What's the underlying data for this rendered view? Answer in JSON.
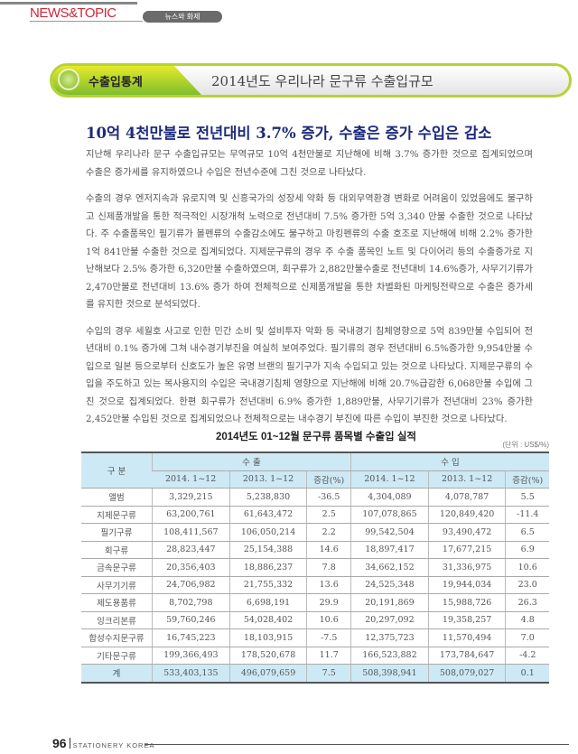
{
  "header": {
    "section": "NEWS&TOPIC",
    "section_kr": "뉴스와 화제"
  },
  "banner": {
    "category": "수출입통계",
    "title": "2014년도 우리나라 문구류 수출입규모",
    "accent_color": "#b6d334"
  },
  "article": {
    "headline": "10억 4천만불로 전년대비 3.7% 증가, 수출은 증가 수입은 감소",
    "paragraphs": [
      "지난해 우리나라 문구 수출입규모는 무역규모 10억 4천만불로 지난해에 비해 3.7% 증가한 것으로 집계되었으며 수출은 증가세를 유지하였으나 수입은 전년수준에 그친 것으로 나타났다.",
      "수출의 경우 엔저지속과 유로지역 및 신흥국가의 성장세 약화 등 대외무역환경 변화로 어려움이 있었음에도 불구하고 신제품개발을 통한 적극적인 시장개척 노력으로 전년대비 7.5% 증가한 5억 3,340 만불 수출한 것으로 나타났다. 주 수출품목인 필기류가 볼펜류의 수출감소에도 불구하고 마킹펜류의 수출 호조로 지난해에 비해 2.2% 증가한 1억 841만불 수출한 것으로 집계되었다. 지제문구류의 경우 주 수출 품목인 노트 및 다이어리 등의 수출증가로 지난해보다 2.5% 증가한 6,320만불 수출하였으며, 회구류가 2,882만불수출로 전년대비 14.6%증가, 사무기기류가 2,470만불로 전년대비 13.6% 증가 하여 전체적으로 신제품개발을 통한 차별화된 마케팅전략으로 수출은 증가세를 유지한 것으로 분석되었다.",
      "수입의 경우 세월호 사고로 인한 민간 소비 및 설비투자 악화 등 국내경기 침체영향으로 5억 839만불 수입되어 전년대비 0.1% 증가에 그쳐 내수경기부진을 여실히 보여주었다. 필기류의 경우 전년대비 6.5%증가한 9,954만불 수입으로 일본 등으로부터 신호도가 높은 유명 브랜의 필기구가 지속 수입되고 있는 것으로 나타났다. 지제문구류의 수입을 주도하고 있는 복사용지의 수입은 국내경기침체 영향으로 지난해에 비해 20.7%급감한 6,068만불 수입에 그친 것으로 집계되었다. 한편 회구류가 전년대비 6.9% 증가한 1,889만불, 사무기기류가 전년대비 23% 증가한 2,452만불 수입된 것으로 집계되었으나 전체적으로는 내수경기 부진에 따른 수입이 부진한 것으로 나타났다."
    ]
  },
  "table": {
    "title": "2014년도 01~12월 문구류 품목별 수출입 실적",
    "unit": "(단위 : US$/%)",
    "header": {
      "category": "구 분",
      "export": "수 출",
      "import": "수 입",
      "sub": [
        "2014. 1~12",
        "2013. 1~12",
        "증감(%)",
        "2014. 1~12",
        "2013. 1~12",
        "증감(%)"
      ]
    },
    "rows": [
      [
        "앨범",
        "3,329,215",
        "5,238,830",
        "-36.5",
        "4,304,089",
        "4,078,787",
        "5.5"
      ],
      [
        "지제문구류",
        "63,200,761",
        "61,643,472",
        "2.5",
        "107,078,865",
        "120,849,420",
        "-11.4"
      ],
      [
        "필기구류",
        "108,411,567",
        "106,050,214",
        "2.2",
        "99,542,504",
        "93,490,472",
        "6.5"
      ],
      [
        "회구류",
        "28,823,447",
        "25,154,388",
        "14.6",
        "18,897,417",
        "17,677,215",
        "6.9"
      ],
      [
        "금속문구류",
        "20,356,403",
        "18,886,237",
        "7.8",
        "34,662,152",
        "31,336,975",
        "10.6"
      ],
      [
        "사무기기류",
        "24,706,982",
        "21,755,332",
        "13.6",
        "24,525,348",
        "19,944,034",
        "23.0"
      ],
      [
        "제도용품류",
        "8,702,798",
        "6,698,191",
        "29.9",
        "20,191,869",
        "15,988,726",
        "26.3"
      ],
      [
        "잉크리본류",
        "59,760,246",
        "54,028,402",
        "10.6",
        "20,297,092",
        "19,358,257",
        "4.8"
      ],
      [
        "합성수지문구류",
        "16,745,223",
        "18,103,915",
        "-7.5",
        "12,375,723",
        "11,570,494",
        "7.0"
      ],
      [
        "기타문구류",
        "199,366,493",
        "178,520,678",
        "11.7",
        "166,523,882",
        "173,784,647",
        "-4.2"
      ]
    ],
    "total": [
      "계",
      "533,403,135",
      "496,079,659",
      "7.5",
      "508,398,941",
      "508,079,027",
      "0.1"
    ]
  },
  "footer": {
    "page": "96",
    "magazine": "STATIONERY KOREA"
  }
}
